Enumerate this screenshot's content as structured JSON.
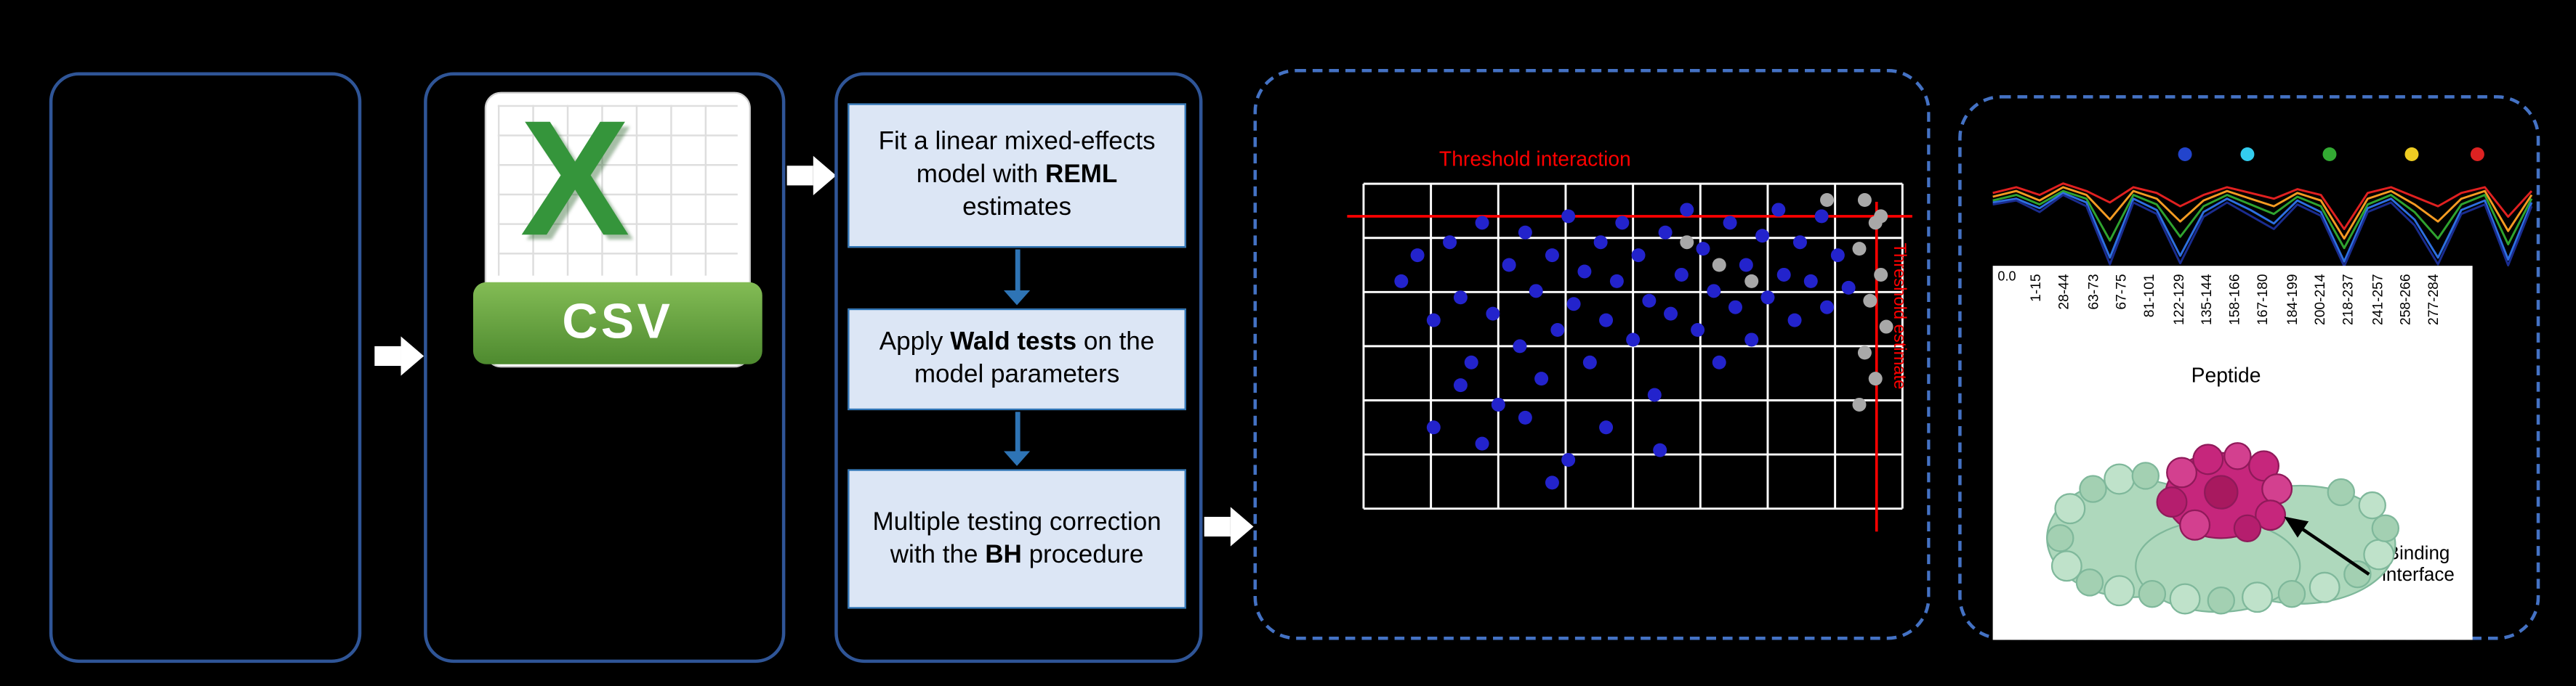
{
  "colors": {
    "background": "#000000",
    "panel_border": "#2F5597",
    "dashed_panel_border": "#4472C4",
    "step_box_fill": "#DCE6F5",
    "step_box_border": "#2E74B5",
    "flow_arrow_blue": "#2E74B5",
    "block_arrow_white": "#FFFFFF",
    "threshold_red": "#FF0000",
    "scatter_blue": "#2323CC",
    "scatter_gray": "#A8A8A8",
    "grid_line": "#FFFFFF",
    "csv_green": "#4E8A2F",
    "excel_x_green": "#35953B",
    "protein_green": "#AED8BC",
    "protein_magenta": "#C6267C"
  },
  "csv_icon": {
    "letter": "X",
    "label": "CSV"
  },
  "workflow": {
    "steps": [
      {
        "t1": "Fit a linear mixed-effects model with ",
        "b": "REML",
        "t2": " estimates"
      },
      {
        "t1": "Apply ",
        "b": "Wald tests",
        "t2": " on the model parameters"
      },
      {
        "t1": "Multiple testing correction with the ",
        "b": "BH",
        "t2": " procedure"
      }
    ]
  },
  "scatter": {
    "title": "Threshold interaction",
    "vline_label": "Threshold estimate",
    "hline_y": 0.1,
    "vline_x": 0.952,
    "grid": {
      "cols": 8,
      "rows": 6
    },
    "blue_points": [
      [
        0.07,
        0.3
      ],
      [
        0.1,
        0.22
      ],
      [
        0.13,
        0.42
      ],
      [
        0.16,
        0.18
      ],
      [
        0.18,
        0.35
      ],
      [
        0.2,
        0.55
      ],
      [
        0.22,
        0.12
      ],
      [
        0.24,
        0.4
      ],
      [
        0.25,
        0.68
      ],
      [
        0.27,
        0.25
      ],
      [
        0.29,
        0.5
      ],
      [
        0.3,
        0.15
      ],
      [
        0.32,
        0.33
      ],
      [
        0.33,
        0.6
      ],
      [
        0.35,
        0.22
      ],
      [
        0.36,
        0.45
      ],
      [
        0.38,
        0.1
      ],
      [
        0.39,
        0.37
      ],
      [
        0.41,
        0.27
      ],
      [
        0.42,
        0.55
      ],
      [
        0.44,
        0.18
      ],
      [
        0.45,
        0.42
      ],
      [
        0.47,
        0.3
      ],
      [
        0.48,
        0.12
      ],
      [
        0.5,
        0.48
      ],
      [
        0.51,
        0.22
      ],
      [
        0.53,
        0.36
      ],
      [
        0.54,
        0.65
      ],
      [
        0.56,
        0.15
      ],
      [
        0.57,
        0.4
      ],
      [
        0.59,
        0.28
      ],
      [
        0.6,
        0.08
      ],
      [
        0.62,
        0.45
      ],
      [
        0.63,
        0.2
      ],
      [
        0.65,
        0.33
      ],
      [
        0.66,
        0.55
      ],
      [
        0.68,
        0.12
      ],
      [
        0.69,
        0.38
      ],
      [
        0.71,
        0.25
      ],
      [
        0.72,
        0.48
      ],
      [
        0.74,
        0.16
      ],
      [
        0.75,
        0.35
      ],
      [
        0.77,
        0.08
      ],
      [
        0.78,
        0.28
      ],
      [
        0.8,
        0.42
      ],
      [
        0.81,
        0.18
      ],
      [
        0.83,
        0.3
      ],
      [
        0.85,
        0.1
      ],
      [
        0.86,
        0.38
      ],
      [
        0.88,
        0.22
      ],
      [
        0.9,
        0.32
      ],
      [
        0.13,
        0.75
      ],
      [
        0.22,
        0.8
      ],
      [
        0.3,
        0.72
      ],
      [
        0.38,
        0.85
      ],
      [
        0.18,
        0.62
      ],
      [
        0.45,
        0.75
      ],
      [
        0.55,
        0.82
      ],
      [
        0.35,
        0.92
      ]
    ],
    "gray_points": [
      [
        0.93,
        0.05
      ],
      [
        0.95,
        0.12
      ],
      [
        0.92,
        0.2
      ],
      [
        0.96,
        0.28
      ],
      [
        0.94,
        0.36
      ],
      [
        0.97,
        0.44
      ],
      [
        0.93,
        0.52
      ],
      [
        0.95,
        0.6
      ],
      [
        0.92,
        0.68
      ],
      [
        0.96,
        0.1
      ],
      [
        0.6,
        0.18
      ],
      [
        0.66,
        0.25
      ],
      [
        0.72,
        0.3
      ],
      [
        0.86,
        0.05
      ]
    ]
  },
  "profile_chart": {
    "ytick": "0.0",
    "legend_dot_colors": [
      "#2244CC",
      "#33CCEE",
      "#33AA33",
      "#EECC22",
      "#DD2222"
    ],
    "series": [
      {
        "name": "series-red",
        "color": "#E02020",
        "values": [
          0.8,
          0.86,
          0.78,
          0.9,
          0.82,
          0.7,
          0.86,
          0.8,
          0.66,
          0.78,
          0.86,
          0.8,
          0.74,
          0.84,
          0.78,
          0.42,
          0.8,
          0.86,
          0.76,
          0.66,
          0.8,
          0.86,
          0.55,
          0.82
        ]
      },
      {
        "name": "series-orange",
        "color": "#F59B22",
        "values": [
          0.76,
          0.82,
          0.72,
          0.86,
          0.78,
          0.52,
          0.82,
          0.74,
          0.5,
          0.72,
          0.82,
          0.74,
          0.66,
          0.8,
          0.72,
          0.32,
          0.74,
          0.82,
          0.68,
          0.5,
          0.74,
          0.82,
          0.4,
          0.78
        ]
      },
      {
        "name": "series-green",
        "color": "#2FA32F",
        "values": [
          0.72,
          0.78,
          0.68,
          0.82,
          0.74,
          0.3,
          0.78,
          0.68,
          0.34,
          0.66,
          0.78,
          0.68,
          0.58,
          0.76,
          0.66,
          0.22,
          0.68,
          0.78,
          0.6,
          0.32,
          0.68,
          0.78,
          0.26,
          0.74
        ]
      },
      {
        "name": "series-blue",
        "color": "#2D6FE0",
        "values": [
          0.7,
          0.74,
          0.64,
          0.8,
          0.7,
          0.12,
          0.74,
          0.62,
          0.14,
          0.6,
          0.74,
          0.62,
          0.48,
          0.72,
          0.6,
          0.08,
          0.64,
          0.74,
          0.52,
          0.12,
          0.62,
          0.72,
          0.1,
          0.7
        ]
      },
      {
        "name": "series-navy",
        "color": "#1A2C8F",
        "values": [
          0.68,
          0.72,
          0.6,
          0.78,
          0.66,
          0.05,
          0.7,
          0.58,
          0.06,
          0.55,
          0.7,
          0.56,
          0.42,
          0.68,
          0.56,
          0.03,
          0.6,
          0.7,
          0.46,
          0.05,
          0.58,
          0.68,
          0.04,
          0.66
        ]
      }
    ]
  },
  "peptide_axis": {
    "labels": [
      "1-15",
      "28-44",
      "63-73",
      "67-75",
      "81-101",
      "122-129",
      "135-144",
      "158-166",
      "167-180",
      "184-199",
      "200-214",
      "218-237",
      "241-257",
      "258-266",
      "277-284"
    ],
    "axis_label": "Peptide"
  },
  "protein": {
    "annotation": "Binding interface"
  }
}
